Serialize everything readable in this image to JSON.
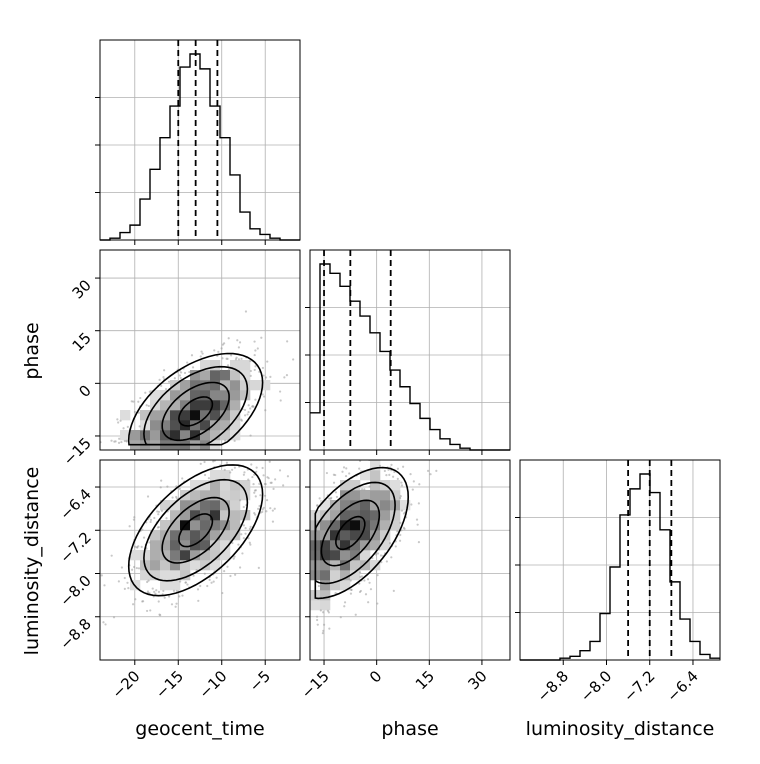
{
  "chart_data": {
    "type": "corner",
    "parameters": [
      {
        "name": "geocent_time",
        "label": "geocent_time",
        "range": [
          -24,
          -1
        ],
        "ticks": [
          -20,
          -15,
          -10,
          -5
        ],
        "tick_labels": [
          "−20",
          "−15",
          "−10",
          "−5"
        ],
        "quantiles": [
          -15.0,
          -13.0,
          -10.5
        ]
      },
      {
        "name": "phase",
        "label": "phase",
        "range": [
          -19,
          38
        ],
        "ticks": [
          -15,
          0,
          15,
          30
        ],
        "tick_labels": [
          "−15",
          "0",
          "15",
          "30"
        ],
        "quantiles": [
          -15.0,
          -7.5,
          4.0
        ]
      },
      {
        "name": "luminosity_distance",
        "label": "luminosity_distance",
        "range": [
          -9.6,
          -5.9
        ],
        "ticks": [
          -8.8,
          -8.0,
          -7.2,
          -6.4
        ],
        "tick_labels": [
          "−8.8",
          "−8.0",
          "−7.2",
          "−6.4"
        ],
        "quantiles": [
          -7.6,
          -7.2,
          -6.8
        ]
      }
    ],
    "hist_1d": [
      {
        "param": "geocent_time",
        "edges": [
          -24.0,
          -22.85,
          -21.7,
          -20.55,
          -19.4,
          -18.25,
          -17.1,
          -15.95,
          -14.8,
          -13.65,
          -12.5,
          -11.35,
          -10.2,
          -9.05,
          -7.9,
          -6.75,
          -5.6,
          -4.45,
          -3.3,
          -2.15,
          -1.0
        ],
        "counts": [
          0,
          1,
          4,
          8,
          22,
          38,
          55,
          72,
          93,
          100,
          92,
          72,
          55,
          35,
          15,
          6,
          3,
          1,
          0,
          0
        ]
      },
      {
        "param": "phase",
        "edges": [
          -19.0,
          -16.15,
          -13.3,
          -10.45,
          -7.6,
          -4.75,
          -1.9,
          0.95,
          3.8,
          6.65,
          9.5,
          12.35,
          15.2,
          18.05,
          20.9,
          23.75,
          26.6,
          29.45,
          32.3,
          35.15,
          38.0
        ],
        "counts": [
          20,
          100,
          95,
          88,
          80,
          72,
          63,
          53,
          43,
          34,
          25,
          17,
          11,
          6,
          3,
          1,
          0,
          0,
          0,
          0
        ]
      },
      {
        "param": "luminosity_distance",
        "edges": [
          -9.6,
          -9.415,
          -9.23,
          -9.045,
          -8.86,
          -8.675,
          -8.49,
          -8.305,
          -8.12,
          -7.935,
          -7.75,
          -7.565,
          -7.38,
          -7.195,
          -7.01,
          -6.825,
          -6.64,
          -6.455,
          -6.27,
          -6.085,
          -5.9
        ],
        "counts": [
          0,
          0,
          0,
          0,
          1,
          2,
          5,
          10,
          25,
          50,
          78,
          92,
          100,
          90,
          70,
          42,
          22,
          10,
          3,
          1
        ]
      }
    ],
    "hist_2d": [
      {
        "x": "geocent_time",
        "y": "phase",
        "mean": [
          -13.0,
          -8.0
        ],
        "std": [
          3.5,
          7.5
        ],
        "corr": 0.5
      },
      {
        "x": "geocent_time",
        "y": "luminosity_distance",
        "mean": [
          -13.0,
          -7.2
        ],
        "std": [
          3.5,
          0.55
        ],
        "corr": 0.55
      },
      {
        "x": "phase",
        "y": "luminosity_distance",
        "mean": [
          -7.5,
          -7.25
        ],
        "std": [
          7.5,
          0.55
        ],
        "corr": 0.55
      }
    ],
    "xlabels": [
      "geocent_time",
      "phase",
      "luminosity_distance"
    ],
    "ylabels": [
      "",
      "phase",
      "luminosity_distance"
    ],
    "grid": true,
    "quantile_style": "dashed"
  }
}
